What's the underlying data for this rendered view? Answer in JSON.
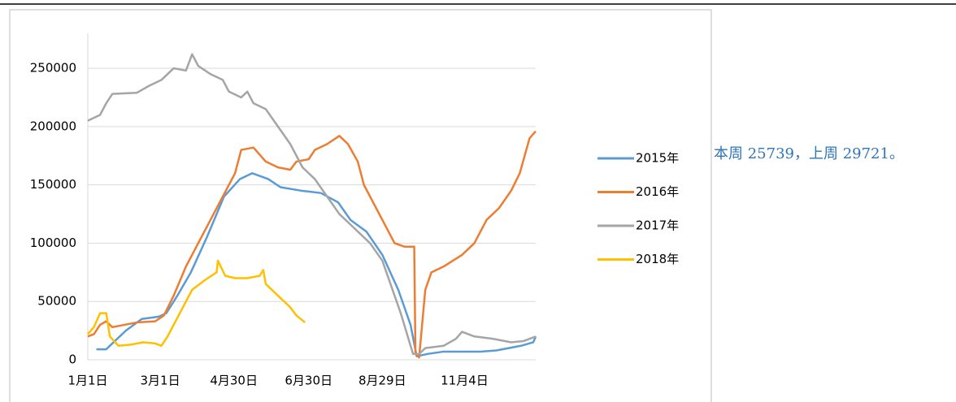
{
  "chart_data": {
    "type": "line",
    "annotation": "本周 25739，上周 29721。",
    "xlim": [
      0,
      365
    ],
    "xticks": [
      {
        "value": 0,
        "label": "1月1日"
      },
      {
        "value": 59,
        "label": "3月1日"
      },
      {
        "value": 119,
        "label": "4月30日"
      },
      {
        "value": 180,
        "label": "6月30日"
      },
      {
        "value": 240,
        "label": "8月29日"
      },
      {
        "value": 307,
        "label": "11月4日"
      }
    ],
    "ylim": [
      0,
      280000
    ],
    "yticks": [
      0,
      50000,
      100000,
      150000,
      200000,
      250000
    ],
    "grid": true,
    "legend": "right",
    "series": [
      {
        "name": "2015年",
        "color": "#5b9bd5",
        "x": [
          7,
          15,
          21,
          31,
          44,
          58,
          64,
          73,
          84,
          97,
          111,
          124,
          134,
          147,
          157,
          174,
          190,
          204,
          214,
          227,
          240,
          253,
          263,
          268,
          277,
          290,
          320,
          333,
          353,
          363,
          365
        ],
        "values": [
          9000,
          9000,
          15000,
          25000,
          35000,
          37000,
          40000,
          55000,
          75000,
          105000,
          140000,
          155000,
          160000,
          155000,
          148000,
          145000,
          143000,
          135000,
          120000,
          110000,
          90000,
          60000,
          30000,
          3000,
          5000,
          7000,
          7000,
          8000,
          12000,
          15000,
          20000
        ]
      },
      {
        "name": "2016年",
        "color": "#ed7d31",
        "x": [
          0,
          5,
          10,
          15,
          20,
          30,
          40,
          55,
          62,
          70,
          80,
          90,
          100,
          110,
          120,
          125,
          135,
          145,
          155,
          165,
          170,
          180,
          185,
          195,
          205,
          212,
          220,
          225,
          235,
          240,
          250,
          258,
          266,
          267,
          270,
          275,
          280,
          290,
          305,
          315,
          325,
          335,
          345,
          352,
          360,
          365
        ],
        "values": [
          20000,
          22000,
          30000,
          33000,
          28000,
          30000,
          32000,
          33000,
          38000,
          55000,
          80000,
          100000,
          120000,
          140000,
          160000,
          180000,
          182000,
          170000,
          165000,
          163000,
          170000,
          172000,
          180000,
          185000,
          192000,
          185000,
          170000,
          150000,
          130000,
          120000,
          100000,
          97000,
          97000,
          5000,
          2000,
          60000,
          75000,
          80000,
          90000,
          100000,
          120000,
          130000,
          145000,
          160000,
          190000,
          196000
        ]
      },
      {
        "name": "2017年",
        "color": "#a5a5a5",
        "x": [
          0,
          10,
          15,
          20,
          40,
          50,
          60,
          70,
          80,
          85,
          90,
          100,
          110,
          115,
          125,
          130,
          135,
          145,
          155,
          165,
          175,
          185,
          195,
          205,
          215,
          230,
          240,
          255,
          265,
          270,
          275,
          290,
          300,
          305,
          315,
          330,
          345,
          355,
          365
        ],
        "values": [
          205000,
          210000,
          220000,
          228000,
          229000,
          235000,
          240000,
          250000,
          248000,
          262000,
          252000,
          245000,
          240000,
          230000,
          225000,
          230000,
          220000,
          215000,
          200000,
          185000,
          165000,
          155000,
          140000,
          125000,
          115000,
          100000,
          85000,
          40000,
          5000,
          5000,
          10000,
          12000,
          18000,
          24000,
          20000,
          18000,
          15000,
          16000,
          20000
        ]
      },
      {
        "name": "2018年",
        "color": "#ffc000",
        "x": [
          0,
          5,
          10,
          15,
          18,
          25,
          35,
          45,
          55,
          60,
          65,
          75,
          85,
          95,
          105,
          106,
          112,
          120,
          130,
          140,
          143,
          145,
          155,
          165,
          170,
          177
        ],
        "values": [
          22000,
          28000,
          40000,
          40000,
          20000,
          12000,
          13000,
          15000,
          14000,
          12000,
          20000,
          40000,
          60000,
          68000,
          75000,
          85000,
          72000,
          70000,
          70000,
          72000,
          77000,
          65000,
          55000,
          45000,
          38000,
          32000
        ]
      }
    ]
  }
}
